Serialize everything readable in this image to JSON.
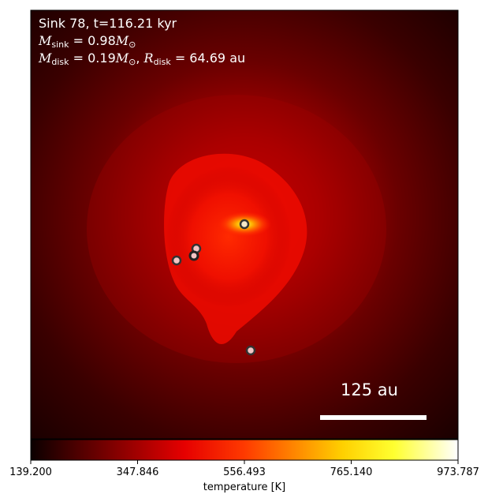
{
  "title": {
    "line1": "Sink 78, t=116.21 kyr",
    "msink_value": "= 0.98",
    "mdisk_value": "= 0.19",
    "rdisk_value": "= 64.69",
    "rdisk_unit": "au"
  },
  "scale_bar": {
    "label": "125 au"
  },
  "colorbar": {
    "label": "temperature [K]",
    "ticks": [
      "139.200",
      "347.846",
      "556.493",
      "765.140",
      "973.787"
    ],
    "range": [
      139.2,
      973.787
    ],
    "colormap": "hot"
  },
  "sinks": [
    {
      "kind": "primary",
      "fill": "#f4e8c8",
      "ring": "#333333"
    },
    {
      "kind": "companion",
      "fill": "#f4c4c4",
      "ring": "#333333"
    },
    {
      "kind": "companion",
      "fill": "#f4c4c4",
      "ring": "#333333"
    },
    {
      "kind": "companion",
      "fill": "#f4c4c4",
      "ring": "#333333"
    },
    {
      "kind": "companion",
      "fill": "#f4c4c4",
      "ring": "#333333"
    }
  ],
  "colors": {
    "background_dark": "#1a0000",
    "hot_core": "#ff2000",
    "white": "#ffffff"
  }
}
